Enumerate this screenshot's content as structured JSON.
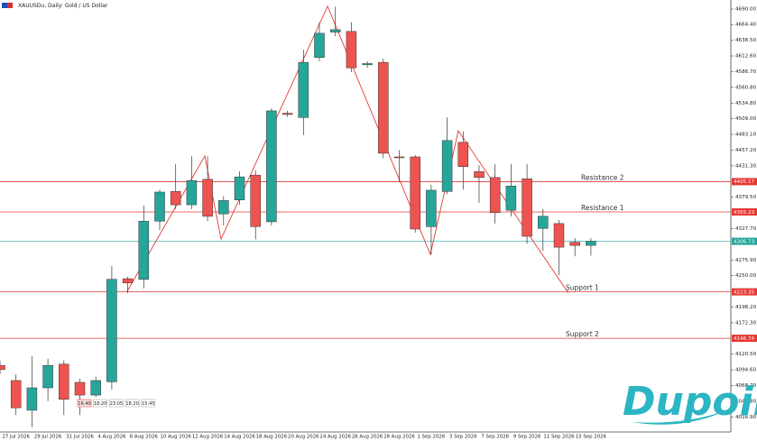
{
  "title": "XAUUSDu, Daily: Gold / US Dollar",
  "logo": "Dupoin",
  "time_boxes": [
    "16:40",
    "18:20",
    "23:05",
    "18:20",
    "15:45"
  ],
  "chart_data": {
    "type": "candlestick",
    "up_color": "#26a69a",
    "down_color": "#ef5350",
    "categories": [
      null,
      "27 Jul 2026",
      null,
      "29 Jul 2026",
      null,
      "31 Jul 2026",
      null,
      "4 Aug 2026",
      null,
      "6 Aug 2026",
      null,
      "10 Aug 2026",
      null,
      "12 Aug 2026",
      null,
      "14 Aug 2026",
      null,
      "18 Aug 2026",
      null,
      "20 Aug 2026",
      null,
      "24 Aug 2026",
      null,
      "26 Aug 2026",
      null,
      "28 Aug 2026",
      null,
      "1 Sep 2026",
      null,
      "3 Sep 2026",
      null,
      "7 Sep 2026",
      null,
      "9 Sep 2026",
      null,
      "11 Sep 2026",
      null,
      "15 Sep 2026"
    ],
    "open": [
      4102,
      4077,
      4028,
      4065,
      4104,
      4074,
      4053,
      4075,
      4245,
      4244,
      4340,
      4389,
      4367,
      4409,
      4352,
      4375,
      4416,
      4339,
      4518,
      4511,
      4610,
      4652,
      4653,
      4598,
      4602,
      4446,
      4446,
      4331,
      4389,
      4470,
      4422,
      4412,
      4358,
      4410,
      4328,
      4336,
      4305,
      4300
    ],
    "high": [
      4110,
      4087,
      4117,
      4113,
      4110,
      4080,
      4083,
      4266,
      4248,
      4366,
      4392,
      4434,
      4447,
      4447,
      4381,
      4422,
      4424,
      4526,
      4522,
      4623,
      4668,
      4694,
      4668,
      4604,
      4608,
      4457,
      4449,
      4400,
      4511,
      4488,
      4432,
      4434,
      4434,
      4434,
      4360,
      4342,
      4312,
      4312
    ],
    "low": [
      4087,
      4020,
      4000,
      4043,
      4020,
      4020,
      4050,
      4062,
      4221,
      4229,
      4325,
      4360,
      4360,
      4340,
      4333,
      4367,
      4310,
      4333,
      4512,
      4482,
      4604,
      4645,
      4586,
      4593,
      4444,
      4405,
      4321,
      4285,
      4385,
      4392,
      4370,
      4336,
      4348,
      4303,
      4291,
      4251,
      4282,
      4283
    ],
    "close": [
      4095,
      4032,
      4065,
      4102,
      4046,
      4053,
      4077,
      4244,
      4238,
      4340,
      4388,
      4367,
      4407,
      4348,
      4374,
      4413,
      4331,
      4522,
      4516,
      4602,
      4650,
      4656,
      4593,
      4600,
      4452,
      4445,
      4327,
      4391,
      4473,
      4430,
      4412,
      4354,
      4398,
      4315,
      4348,
      4297,
      4300,
      4306.73
    ],
    "ylim": [
      3993.6,
      4704.9
    ],
    "yticks": [
      {
        "value": 4690.0,
        "label": "4690.00"
      },
      {
        "value": 4664.4,
        "label": "4664.40"
      },
      {
        "value": 4638.5,
        "label": "4638.50"
      },
      {
        "value": 4612.6,
        "label": "4612.60"
      },
      {
        "value": 4586.7,
        "label": "4586.70"
      },
      {
        "value": 4560.8,
        "label": "4560.80"
      },
      {
        "value": 4534.8,
        "label": "4534.80"
      },
      {
        "value": 4509.0,
        "label": "4509.00"
      },
      {
        "value": 4483.1,
        "label": "4483.10"
      },
      {
        "value": 4457.2,
        "label": "4457.20"
      },
      {
        "value": 4431.3,
        "label": "4431.30"
      },
      {
        "value": 4379.5,
        "label": "4379.50"
      },
      {
        "value": 4327.7,
        "label": "4327.70"
      },
      {
        "value": 4275.9,
        "label": "4275.90"
      },
      {
        "value": 4250.0,
        "label": "4250.00"
      },
      {
        "value": 4198.2,
        "label": "4198.20"
      },
      {
        "value": 4172.3,
        "label": "4172.30"
      },
      {
        "value": 4120.5,
        "label": "4120.50"
      },
      {
        "value": 4094.6,
        "label": "4094.60"
      },
      {
        "value": 4068.7,
        "label": "4068.70"
      },
      {
        "value": 4042.8,
        "label": "4042.80"
      },
      {
        "value": 4016.9,
        "label": "4016.90"
      }
    ],
    "levels": [
      {
        "name": "Resistance 2",
        "value": 4405.17,
        "color": "#e53935"
      },
      {
        "name": "Resistance 1",
        "value": 4355.23,
        "color": "#e53935"
      },
      {
        "value": 4306.73,
        "color": "#26a69a"
      },
      {
        "name": "Support 1",
        "value": 4223.35,
        "color": "#e53935"
      },
      {
        "name": "Support 2",
        "value": 4146.74,
        "color": "#e53935"
      }
    ]
  }
}
